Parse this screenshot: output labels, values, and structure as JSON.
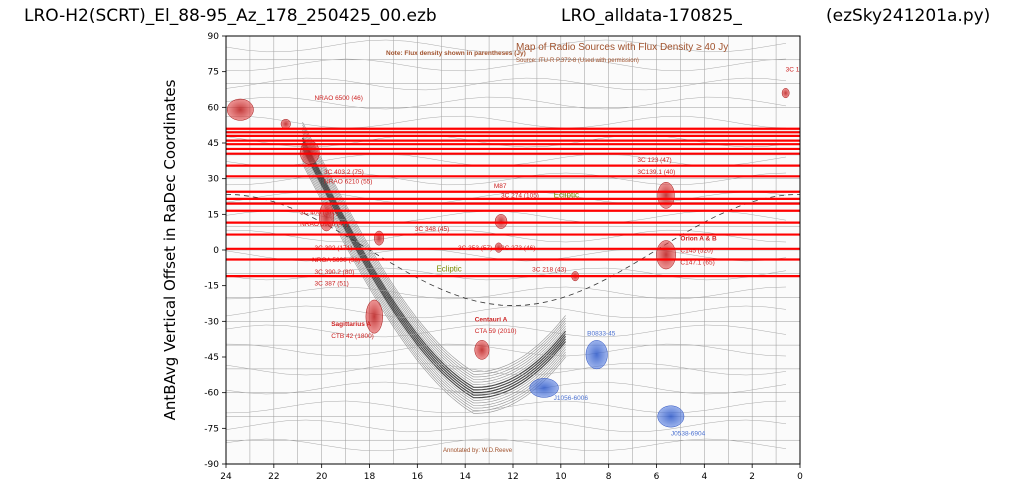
{
  "header": {
    "title_left": "LRO-H2(SCRT)_El_88-95_Az_178_250425_00.ezb",
    "title_mid": "LRO_alldata-170825_",
    "title_right": "(ezSky241201a.py)"
  },
  "chart_data": {
    "type": "scatter",
    "title": "LRO-H2(SCRT)_El_88-95_Az_178_250425_00.ezb",
    "xlabel": "",
    "ylabel": "AntBAvg Vertical Offset in RaDec Coordinates",
    "xlim": [
      24,
      0
    ],
    "ylim": [
      -90,
      90
    ],
    "xticks": [
      "24",
      "22",
      "20",
      "18",
      "16",
      "14",
      "12",
      "10",
      "8",
      "6",
      "4",
      "2",
      "0"
    ],
    "yticks": [
      "90",
      "75",
      "60",
      "45",
      "30",
      "15",
      "0",
      "-15",
      "-30",
      "-45",
      "-60",
      "-75",
      "-90"
    ],
    "grid": true,
    "background_map": {
      "title": "Map of Radio Sources with Flux Density ≥ 40 Jy",
      "source": "Source: ITU-R P.372-8 (Used with permission)",
      "note": "Note: Flux density shown in parentheses (Jy)",
      "credit": "Annotated by: W.D.Reeve"
    },
    "observation_tracks": {
      "color": "#ff0000",
      "description": "Horizontal red scan lines spanning RA 24h to 0h",
      "dec_values": [
        51,
        49.5,
        48,
        46,
        44.5,
        42.5,
        40.5,
        35.5,
        31,
        24.5,
        21.5,
        19.5,
        16.5,
        11.5,
        6.5,
        0.5,
        -4,
        -11
      ]
    },
    "sources": [
      {
        "label": "NRAO 6500 (46)",
        "ra": 20.3,
        "dec": 63,
        "color": "#cc2222"
      },
      {
        "label": "3C 10 (44)",
        "ra": 0.6,
        "dec": 75,
        "color": "#cc2222"
      },
      {
        "label": "3C 403.2 (75)",
        "ra": 19.9,
        "dec": 32,
        "color": "#cc2222"
      },
      {
        "label": "NRAO 6210 (55)",
        "ra": 19.9,
        "dec": 28,
        "color": "#cc2222"
      },
      {
        "label": "M87",
        "ra": 12.8,
        "dec": 26,
        "color": "#cc2222"
      },
      {
        "label": "3C 274 (105)",
        "ra": 12.5,
        "dec": 22,
        "color": "#cc2222"
      },
      {
        "label": "Ecliptic",
        "ra": 10.3,
        "dec": 22,
        "color": "#7a8a00"
      },
      {
        "label": "3C 123 (47)",
        "ra": 6.8,
        "dec": 37,
        "color": "#cc2222"
      },
      {
        "label": "3C139.1 (40)",
        "ra": 6.8,
        "dec": 32,
        "color": "#cc2222"
      },
      {
        "label": "3C 400 (570)",
        "ra": 20.9,
        "dec": 15,
        "color": "#cc2222"
      },
      {
        "label": "NRAO 5980 (47)",
        "ra": 20.9,
        "dec": 10,
        "color": "#cc2222"
      },
      {
        "label": "3C 348 (45)",
        "ra": 16.1,
        "dec": 8,
        "color": "#cc2222"
      },
      {
        "label": "3C 392 (171)",
        "ra": 20.3,
        "dec": 0,
        "color": "#cc2222"
      },
      {
        "label": "3C 353 (57)",
        "ra": 14.3,
        "dec": 0,
        "color": "#cc2222"
      },
      {
        "label": "3C 273 (46)",
        "ra": 12.5,
        "dec": 0,
        "color": "#cc2222"
      },
      {
        "label": "NROA 5690 (90)",
        "ra": 20.4,
        "dec": -5,
        "color": "#cc2222"
      },
      {
        "label": "3C 390.2 (80)",
        "ra": 20.3,
        "dec": -10,
        "color": "#cc2222"
      },
      {
        "label": "3C 387 (51)",
        "ra": 20.3,
        "dec": -15,
        "color": "#cc2222"
      },
      {
        "label": "Ecliptic",
        "ra": 15.2,
        "dec": -9,
        "color": "#7a8a00"
      },
      {
        "label": "3C 218 (43)",
        "ra": 11.2,
        "dec": -9,
        "color": "#cc2222"
      },
      {
        "label": "Orion A & B",
        "ra": 5.0,
        "dec": 4,
        "color": "#cc2222"
      },
      {
        "label": "C145 (520)",
        "ra": 5.0,
        "dec": -1,
        "color": "#cc2222"
      },
      {
        "label": "C147.1 (65)",
        "ra": 5.0,
        "dec": -6,
        "color": "#cc2222"
      },
      {
        "label": "Sagittarius A",
        "ra": 19.6,
        "dec": -32,
        "color": "#cc2222"
      },
      {
        "label": "CTB 42 (1800)",
        "ra": 19.6,
        "dec": -37,
        "color": "#cc2222"
      },
      {
        "label": "Centauri A",
        "ra": 13.6,
        "dec": -30,
        "color": "#cc2222"
      },
      {
        "label": "CTA 59 (2010)",
        "ra": 13.6,
        "dec": -35,
        "color": "#cc2222"
      },
      {
        "label": "B0833-45",
        "ra": 8.9,
        "dec": -36,
        "color": "#4a70d0"
      },
      {
        "label": "J1056-6006",
        "ra": 10.3,
        "dec": -63,
        "color": "#4a70d0"
      },
      {
        "label": "J0538-6904",
        "ra": 5.4,
        "dec": -78,
        "color": "#4a70d0"
      }
    ],
    "blobs": [
      {
        "name": "cas-a-blob",
        "ra": 23.4,
        "dec": 59,
        "rx": 0.55,
        "ry": 4.5,
        "color": "#d03030"
      },
      {
        "name": "cygnus-blob",
        "ra": 20.5,
        "dec": 41,
        "rx": 0.4,
        "ry": 5,
        "color": "#d03030"
      },
      {
        "name": "cyg-small-blob",
        "ra": 21.5,
        "dec": 53,
        "rx": 0.2,
        "ry": 2,
        "color": "#d03030"
      },
      {
        "name": "3c10-blob",
        "ra": 0.6,
        "dec": 66,
        "rx": 0.15,
        "ry": 2,
        "color": "#e03030"
      },
      {
        "name": "w51-blob",
        "ra": 19.8,
        "dec": 14,
        "rx": 0.3,
        "ry": 6,
        "color": "#d03030"
      },
      {
        "name": "3c400-blob",
        "ra": 17.6,
        "dec": 5,
        "rx": 0.2,
        "ry": 3,
        "color": "#d03030"
      },
      {
        "name": "3c274-blob",
        "ra": 12.5,
        "dec": 12,
        "rx": 0.25,
        "ry": 3,
        "color": "#d03030"
      },
      {
        "name": "3c273-blob",
        "ra": 12.6,
        "dec": 1,
        "rx": 0.15,
        "ry": 2,
        "color": "#d03030"
      },
      {
        "name": "3c218-blob",
        "ra": 9.4,
        "dec": -11,
        "rx": 0.15,
        "ry": 2,
        "color": "#d03030"
      },
      {
        "name": "taurus-blob",
        "ra": 5.6,
        "dec": 23,
        "rx": 0.35,
        "ry": 5.5,
        "color": "#d03030"
      },
      {
        "name": "orion-blob",
        "ra": 5.6,
        "dec": -2,
        "rx": 0.4,
        "ry": 6,
        "color": "#d03030"
      },
      {
        "name": "sgr-a-blob",
        "ra": 17.8,
        "dec": -28,
        "rx": 0.35,
        "ry": 7,
        "color": "#c02020"
      },
      {
        "name": "cen-a-blob",
        "ra": 13.3,
        "dec": -42,
        "rx": 0.3,
        "ry": 4,
        "color": "#c02020"
      },
      {
        "name": "vela-blob",
        "ra": 8.5,
        "dec": -44,
        "rx": 0.45,
        "ry": 6,
        "color": "#3a66d8"
      },
      {
        "name": "j1056-blob",
        "ra": 10.7,
        "dec": -58,
        "rx": 0.6,
        "ry": 4,
        "color": "#3a66d8"
      },
      {
        "name": "lmc-blob",
        "ra": 5.4,
        "dec": -70,
        "rx": 0.55,
        "ry": 4.5,
        "color": "#3a66d8"
      }
    ]
  }
}
